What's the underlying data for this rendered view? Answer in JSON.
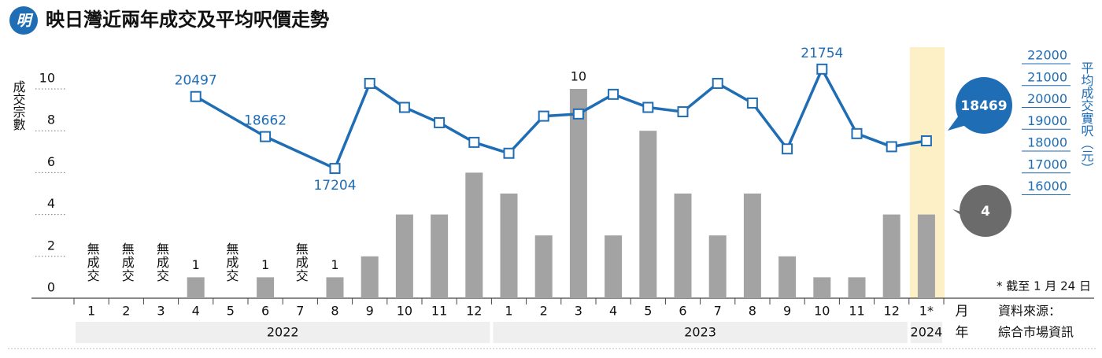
{
  "logo": "明",
  "chart_data": {
    "type": "bar",
    "title": "映日灣近兩年成交及平均呎價走勢",
    "categories": [
      "1",
      "2",
      "3",
      "4",
      "5",
      "6",
      "7",
      "8",
      "9",
      "10",
      "11",
      "12",
      "1",
      "2",
      "3",
      "4",
      "5",
      "6",
      "7",
      "8",
      "9",
      "10",
      "11",
      "12",
      "1*"
    ],
    "groups": [
      "2022",
      "2023",
      "2024"
    ],
    "x_label": "月",
    "group_label": "年",
    "ylabel": "成交宗數",
    "y2label": "平均成交實呎（元）",
    "ylim": [
      0,
      10
    ],
    "yticks": [
      0,
      2,
      4,
      6,
      8,
      10
    ],
    "y2lim": [
      16000,
      22000
    ],
    "y2ticks": [
      16000,
      17000,
      18000,
      19000,
      20000,
      21000,
      22000
    ],
    "series": [
      {
        "type": "bar",
        "color": "#a3a3a3",
        "values": [
          0,
          0,
          0,
          1,
          0,
          1,
          0,
          1,
          2,
          4,
          4,
          6,
          5,
          3,
          10,
          3,
          8,
          5,
          3,
          5,
          2,
          1,
          1,
          4,
          4
        ],
        "value_labels": [
          "無成交",
          "無成交",
          "無成交",
          "1",
          "無成交",
          "1",
          "無成交",
          "1",
          null,
          null,
          null,
          null,
          null,
          null,
          "10",
          null,
          null,
          null,
          null,
          null,
          null,
          null,
          null,
          null,
          null
        ]
      },
      {
        "type": "line",
        "axis": "y2",
        "color": "#1f6db5",
        "values": [
          null,
          null,
          null,
          20497,
          null,
          18662,
          null,
          17204,
          21100,
          20000,
          19300,
          18400,
          17900,
          19600,
          19700,
          20600,
          20000,
          19800,
          21100,
          20200,
          18100,
          21754,
          18800,
          18200,
          18469
        ],
        "value_labels": [
          null,
          null,
          null,
          "20497",
          null,
          "18662",
          null,
          "17204",
          null,
          null,
          null,
          null,
          null,
          null,
          null,
          null,
          null,
          null,
          null,
          null,
          null,
          "21754",
          null,
          null,
          null
        ]
      }
    ],
    "note": "* 截至 1 月 24 日",
    "source_label": "資料來源：",
    "source": "綜合市場資訊",
    "highlight_color": "#fdf0c6",
    "callout_colors": [
      "#6b6b6b",
      "#1f6db5"
    ]
  }
}
